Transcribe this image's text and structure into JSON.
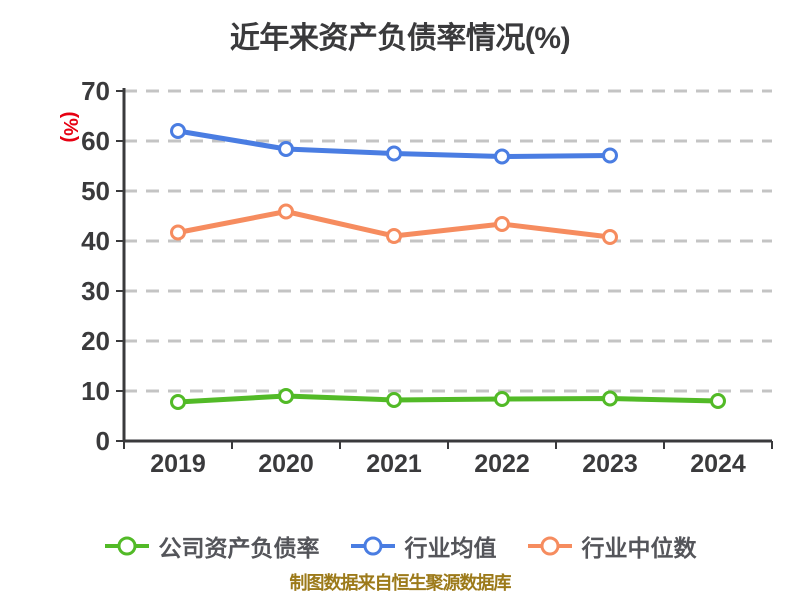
{
  "chart_data": {
    "type": "line",
    "title": "近年来资产负债率情况(%)",
    "ylabel": "(%)",
    "ylabel_color": "#e60012",
    "xlabel": "",
    "categories": [
      "2019",
      "2020",
      "2021",
      "2022",
      "2023",
      "2024"
    ],
    "series": [
      {
        "id": "company-debt-ratio",
        "name": "公司资产负债率",
        "color": "#52ba27",
        "values": [
          7.8,
          9.0,
          8.2,
          8.4,
          8.5,
          8.0
        ]
      },
      {
        "id": "industry-mean",
        "name": "行业均值",
        "color": "#4a7de2",
        "values": [
          62.0,
          58.4,
          57.5,
          56.9,
          57.1,
          null
        ]
      },
      {
        "id": "industry-median",
        "name": "行业中位数",
        "color": "#f68c5f",
        "values": [
          41.7,
          45.9,
          41.0,
          43.4,
          40.8,
          null
        ]
      }
    ],
    "ylim": [
      0,
      70
    ],
    "yticks": [
      0,
      10,
      20,
      30,
      40,
      50,
      60,
      70
    ],
    "grid": "horizontal-dashed",
    "grid_color": "#c4c4c4",
    "axis_color": "#3a3a3c",
    "tick_label_color": "#3a3a3c",
    "marker": "circle-white-filled",
    "legend_position": "bottom"
  },
  "footer": {
    "text": "制图数据来自恒生聚源数据库",
    "color": "#9c7a1a"
  }
}
